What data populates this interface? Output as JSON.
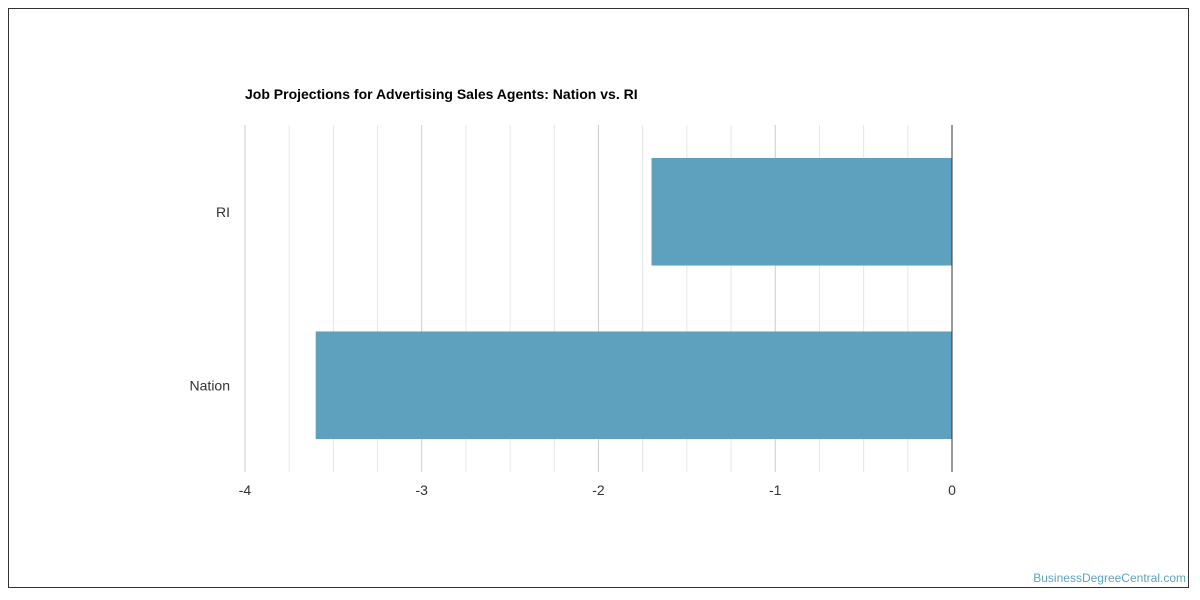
{
  "chart_data": {
    "type": "bar",
    "orientation": "horizontal",
    "title": "Job Projections for Advertising Sales Agents: Nation vs. RI",
    "categories": [
      "RI",
      "Nation"
    ],
    "values": [
      -1.7,
      -3.6
    ],
    "xlim": [
      -4,
      0
    ],
    "x_ticks": [
      "-4",
      "-3",
      "-2",
      "-1",
      "0"
    ],
    "bar_color": "#5ea1be",
    "grid": true
  },
  "watermark": "BusinessDegreeCentral.com"
}
